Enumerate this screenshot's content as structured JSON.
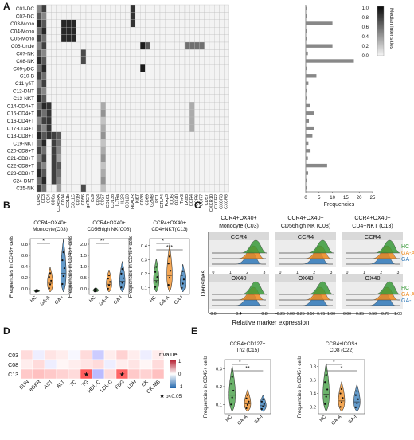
{
  "panels": {
    "A": {
      "letter": "A",
      "rows": [
        "C01-DC",
        "C02-DC",
        "C03-Mono",
        "C04-Mono",
        "C05-Mono",
        "C06-Unde",
        "C07-NK",
        "C08-NK",
        "C09-pDC",
        "C10-B",
        "C11-γδT",
        "C12-DNT",
        "C13-NKT",
        "C14-CD4+T",
        "C15-CD4+T",
        "C16-CD4+T",
        "C17-CD4+T",
        "C18-CD8+T",
        "C19-NKT",
        "C20-CD8+T",
        "C21-CD8+T",
        "C22-CD8+T",
        "C23-CD8+T",
        "C24-DNT",
        "C25-NK"
      ],
      "cols": [
        "CD45",
        "CD3",
        "CD4",
        "CD8a",
        "CD45RA",
        "CD14",
        "CD11b",
        "CD11C",
        "CD19",
        "CD56",
        "gdTCR",
        "Cd9",
        "CD24",
        "CD27",
        "CD161",
        "CD138",
        "IL7Ra",
        "IL2R",
        "CD123",
        "HLADR",
        "Ki67",
        "CD38",
        "CD69",
        "GZMB",
        "PD1",
        "CTLA4",
        "Foxp3",
        "ICOS",
        "OX40",
        "Tim3",
        "LAG3",
        "CCR4",
        "CCR6",
        "CCR7",
        "CD57",
        "CXCR10",
        "CXCR2",
        "CXCR3",
        "CXCR5"
      ],
      "legend_title": "Median intensities",
      "legend_ticks": [
        "1.0",
        "0.8",
        "0.6",
        "0.4",
        "0.2",
        "0.0"
      ],
      "freq_label": "Frequencies",
      "freq_ticks": [
        "0",
        "5",
        "10",
        "15",
        "20",
        "25"
      ],
      "frequencies": [
        0.5,
        0.5,
        10,
        0.5,
        0.5,
        10,
        0.8,
        18,
        0.6,
        4,
        1,
        0.5,
        0.6,
        1.5,
        3,
        1.2,
        3,
        2.5,
        1,
        1.8,
        0.8,
        8,
        0.9,
        0.4,
        0.6
      ]
    },
    "B": {
      "letter": "B",
      "plots": [
        {
          "t1": "CCR4+OX40+",
          "t2": "Monocyte(C03)",
          "ylabel": "Frequencies in CD45+ cells",
          "yticks": [
            "0.0",
            "0.2",
            "0.4",
            "0.6",
            "0.8"
          ],
          "sig": [
            "*"
          ]
        },
        {
          "t1": "CCR4+OX40+",
          "t2": "CD56high NK(C08)",
          "ylabel": "Frequencies in CD45+ cells",
          "yticks": [
            "0.0",
            "0.5",
            "1.0",
            "1.5",
            "2.0"
          ],
          "sig": [
            "**"
          ]
        },
        {
          "t1": "CCR4+OX40+",
          "t2": "CD4+NKT(C13)",
          "ylabel": "Frequencies in CD45+ cells",
          "yticks": [
            "0.1",
            "0.2",
            "0.3",
            "0.4"
          ],
          "sig": [
            "*",
            "***"
          ]
        }
      ],
      "groups": [
        "HC",
        "GA-A",
        "GA-I"
      ]
    },
    "C": {
      "letter": "C",
      "titles": [
        [
          "CCR4+OX40+",
          "Monocyte (C03)"
        ],
        [
          "CCR4+OX40+",
          "CD56high NK (C08)"
        ],
        [
          "CCR4+OX40+",
          "CD4+NKT (C13)"
        ]
      ],
      "markers": [
        "CCR4",
        "OX40"
      ],
      "groups": [
        "HC",
        "GA-A",
        "GA-I"
      ],
      "ylabel": "Densities",
      "xlabel": "Relative marker expression",
      "ccr4_ticks": [
        [
          "0",
          "1",
          "2",
          "3"
        ],
        [
          "0",
          "1",
          "2",
          "3"
        ],
        [
          "0",
          "1",
          "2",
          "3"
        ]
      ],
      "ox40_ticks": [
        [
          "0.0",
          "0.4",
          "0.8"
        ],
        [
          "-0.25",
          "0.00",
          "0.25",
          "0.50",
          "0.75",
          "1.00"
        ],
        [
          "0.00",
          "0.25",
          "0.50",
          "0.75",
          "1.00"
        ]
      ]
    },
    "D": {
      "letter": "D",
      "rows": [
        "C03",
        "C08",
        "C13"
      ],
      "cols": [
        "BUN",
        "eGFR",
        "AST",
        "ALT",
        "TC",
        "TG",
        "HDL-C",
        "LDL-C",
        "FBG",
        "LDH",
        "CK",
        "CK-MB"
      ],
      "legend_title": "r value",
      "legend_ticks": [
        "1",
        "0",
        "-1"
      ],
      "sig_note": "p<0.05",
      "sig_mark": "★"
    },
    "E": {
      "letter": "E",
      "plots": [
        {
          "t1": "CCR4+CD127+",
          "t2": "Th2 (C15)",
          "ylabel": "Frequencies in CD45+ cells",
          "yticks": [
            "0.1",
            "0.2",
            "0.3"
          ],
          "sig": [
            "*",
            "**"
          ]
        },
        {
          "t1": "CCR4+ICOS+",
          "t2": "CD8 (C22)",
          "ylabel": "Frequencies in CD45+ cells",
          "yticks": [
            "0.2",
            "0.4",
            "0.6",
            "0.8"
          ],
          "sig": [
            "*",
            "*"
          ]
        }
      ],
      "groups": [
        "HC",
        "GA-A",
        "GA-I"
      ]
    }
  },
  "colors": {
    "hc": "#3a9a3a",
    "gaa": "#f08a1c",
    "gai": "#2f78b8",
    "pos": "#b2182b",
    "neg": "#2166ac"
  }
}
